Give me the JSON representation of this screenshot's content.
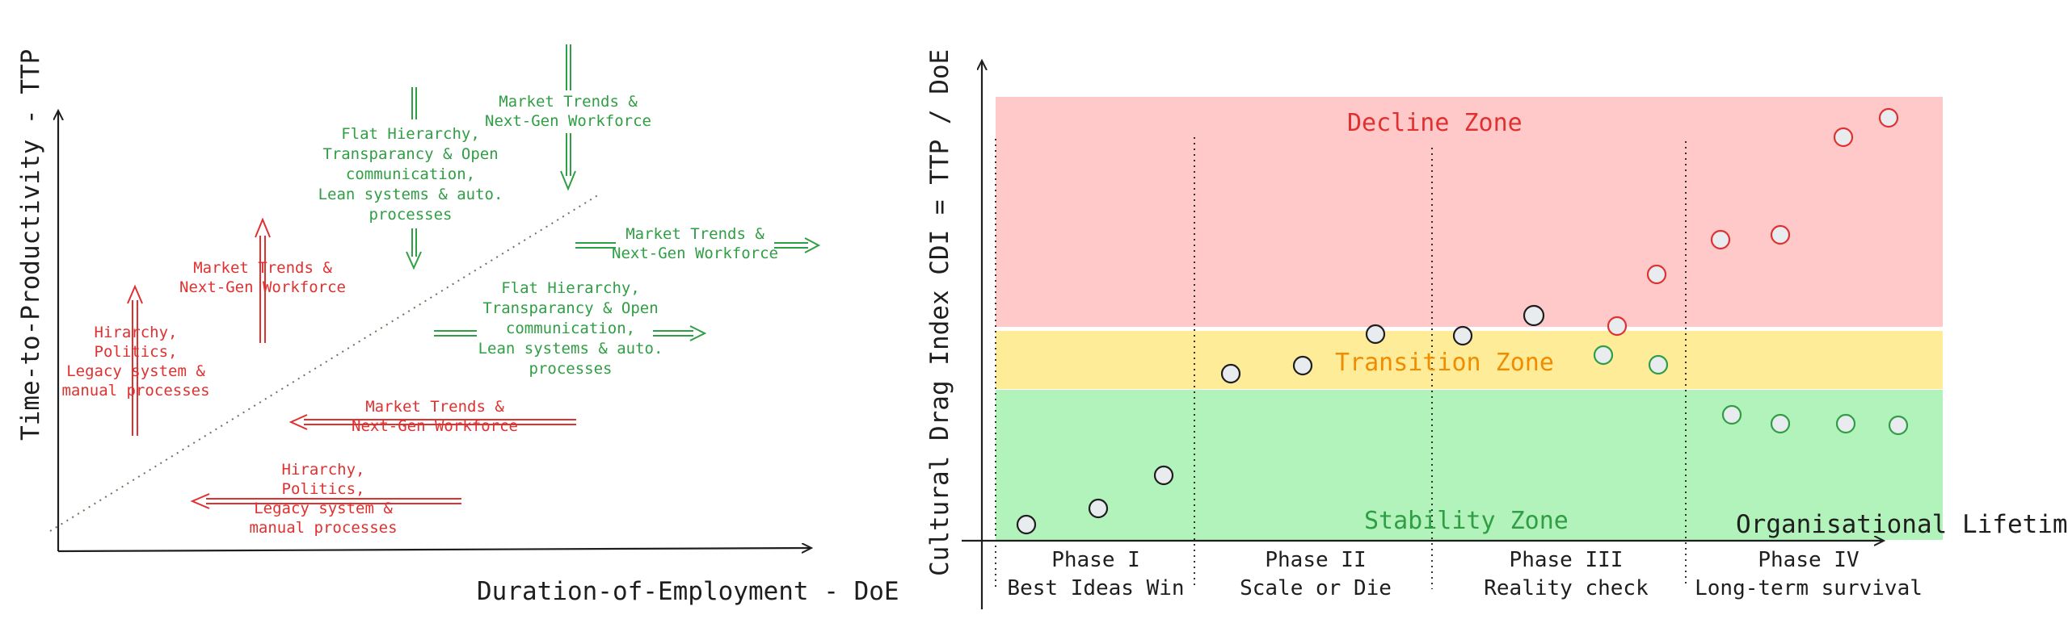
{
  "left_diagram": {
    "x_axis_title": "Duration-of-Employment - DoE",
    "y_axis_title": "Time-to-Productivity - TTP",
    "labels": [
      {
        "id": "red-upper-left",
        "color": "red",
        "lines": [
          "Hirarchy,",
          "Politics,",
          "Legacy system &",
          "manual processes"
        ]
      },
      {
        "id": "red-upper-mid",
        "color": "red",
        "lines": [
          "Market Trends &",
          "Next-Gen Workforce"
        ]
      },
      {
        "id": "red-lower-mid",
        "color": "red",
        "lines": [
          "Market Trends &",
          "Next-Gen Workforce"
        ]
      },
      {
        "id": "red-bottom",
        "color": "red",
        "lines": [
          "Hirarchy,",
          "Politics,",
          "Legacy system &",
          "manual processes"
        ]
      },
      {
        "id": "green-top-left",
        "color": "green",
        "lines": [
          "Flat Hierarchy,",
          "Transparancy & Open",
          "communication,",
          "Lean systems & auto.",
          "processes"
        ]
      },
      {
        "id": "green-top-right",
        "color": "green",
        "lines": [
          "Market Trends &",
          "Next-Gen Workforce"
        ]
      },
      {
        "id": "green-right",
        "color": "green",
        "lines": [
          "Market Trends &",
          "Next-Gen Workforce"
        ]
      },
      {
        "id": "green-mid",
        "color": "green",
        "lines": [
          "Flat Hierarchy,",
          "Transparancy & Open",
          "communication,",
          "Lean systems & auto.",
          "processes"
        ]
      }
    ]
  },
  "right_diagram": {
    "y_axis_title": "Cultural Drag Index  CDI = TTP / DoE",
    "x_axis_title": "Organisational Lifetime",
    "zones": [
      {
        "name": "Decline Zone",
        "fill": "#ffc9c9",
        "text_color": "#e03131"
      },
      {
        "name": "Transition Zone",
        "fill": "#ffec99",
        "text_color": "#f08c00"
      },
      {
        "name": "Stability Zone",
        "fill": "#b2f2bb",
        "text_color": "#2f9e44"
      }
    ],
    "phases": [
      {
        "name": "Phase I",
        "subtitle": "Best Ideas Win"
      },
      {
        "name": "Phase II",
        "subtitle": "Scale or Die"
      },
      {
        "name": "Phase III",
        "subtitle": "Reality check"
      },
      {
        "name": "Phase IV",
        "subtitle": "Long-term survival"
      }
    ],
    "colors": {
      "neutral_stroke": "#1e1e1e",
      "red_stroke": "#e03131",
      "green_stroke": "#2f9e44",
      "marker_fill": "#e9ecef"
    }
  }
}
